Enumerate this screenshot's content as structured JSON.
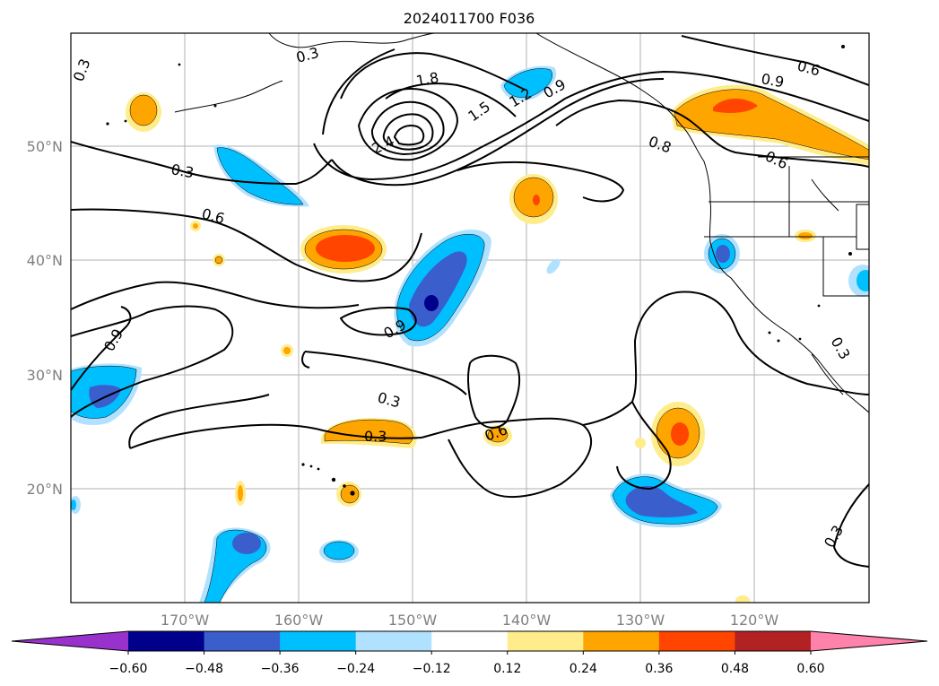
{
  "title": "2024011700 F036",
  "lon_ticks": [
    "170°W",
    "160°W",
    "150°W",
    "140°W",
    "130°W",
    "120°W"
  ],
  "lat_ticks": [
    "20°N",
    "30°N",
    "40°N",
    "50°N"
  ],
  "colorbar": {
    "labels": [
      "−0.60",
      "−0.48",
      "−0.36",
      "−0.24",
      "−0.12",
      "0.12",
      "0.24",
      "0.36",
      "0.48",
      "0.60"
    ],
    "colors": [
      "#9932cc",
      "#00008b",
      "#3a5fcd",
      "#00bfff",
      "#b0e2ff",
      "#ffffff",
      "#ffec8b",
      "#ffa500",
      "#ff4500",
      "#b22222",
      "#ff82ab"
    ]
  },
  "contour_labels": [
    "0.3",
    "1.8",
    "1.5",
    "1.2",
    "0.9",
    "2.4",
    "0.3",
    "0.6",
    "0.9",
    "0.6",
    "0.8",
    "0.6",
    "0.9",
    "0.9",
    "0.3",
    "0.3",
    "0.6",
    "0.3",
    "0.3",
    "0.3"
  ],
  "palette": {
    "yellow": "#ffec8b",
    "orange": "#ffa500",
    "red": "#ff4500",
    "lightblue": "#b0e2ff",
    "cyan": "#00bfff",
    "blue": "#3a5fcd",
    "navy": "#00008b"
  }
}
